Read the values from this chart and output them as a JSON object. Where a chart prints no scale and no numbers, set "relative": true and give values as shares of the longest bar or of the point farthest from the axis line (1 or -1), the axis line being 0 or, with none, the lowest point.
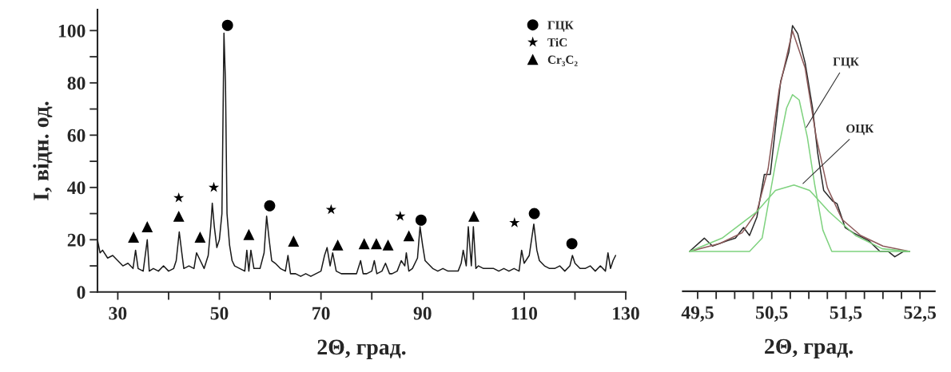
{
  "chart_data": [
    {
      "type": "line",
      "xlabel": "2Θ, град.",
      "ylabel": "I, відн. од.",
      "xlim": [
        26,
        130
      ],
      "ylim": [
        0,
        108
      ],
      "xticks": [
        30,
        {
          "value": 40,
          "label": null
        },
        50,
        {
          "value": 60,
          "label": null
        },
        70,
        {
          "value": 80,
          "label": null
        },
        90,
        {
          "value": 100,
          "label": null
        },
        110,
        {
          "value": 120,
          "label": null
        },
        130
      ],
      "yticks": [
        0,
        {
          "value": 10,
          "label": null
        },
        20,
        {
          "value": 30,
          "label": null
        },
        40,
        {
          "value": 50,
          "label": null
        },
        60,
        {
          "value": 70,
          "label": null
        },
        80,
        {
          "value": 90,
          "label": null
        },
        100
      ],
      "grid": false,
      "legend": "top right",
      "series": [
        {
          "color": "#1a1a1a",
          "x": [
            26,
            26.5,
            27,
            28,
            29,
            30,
            31,
            32,
            33,
            33.5,
            34,
            35,
            35.8,
            36.2,
            37,
            38,
            39,
            40,
            41,
            41.5,
            42.1,
            42.6,
            43,
            44,
            45,
            45.5,
            46,
            47,
            47.8,
            48.3,
            48.6,
            49,
            49.5,
            50,
            50.5,
            50.9,
            51.2,
            51.5,
            52,
            52.5,
            53,
            54,
            55,
            55.4,
            55.8,
            56.2,
            56.8,
            58,
            58.8,
            59.3,
            59.8,
            60.3,
            61,
            62,
            63,
            63.5,
            64,
            65,
            66,
            67,
            68,
            69,
            70,
            70.7,
            71.2,
            71.8,
            72.3,
            73,
            74,
            75,
            76,
            77,
            77.8,
            78.3,
            79,
            80,
            80.5,
            81,
            82,
            82.7,
            83.5,
            84,
            85,
            85.8,
            86.5,
            86.8,
            87.3,
            88,
            89,
            89.5,
            90,
            90.5,
            91,
            92,
            93,
            94,
            95,
            96,
            97,
            97.6,
            98,
            98.6,
            99,
            99.6,
            100,
            100.5,
            101,
            102,
            103,
            104,
            105,
            106,
            107,
            108,
            109,
            109.5,
            110,
            111,
            111.9,
            112.5,
            113,
            114,
            115,
            116,
            117,
            118,
            119,
            119.5,
            120,
            121,
            122,
            123,
            124,
            125,
            126,
            126.5,
            127,
            127.5,
            128
          ],
          "values": [
            20,
            15,
            16,
            13,
            14,
            12,
            10,
            11,
            9,
            16,
            9,
            8,
            20,
            8,
            9,
            8,
            10,
            8,
            9,
            12,
            23,
            15,
            9,
            10,
            9,
            15,
            13,
            9,
            14,
            25,
            34,
            25,
            17,
            20,
            30,
            99,
            80,
            30,
            18,
            12,
            10,
            9,
            8,
            16,
            8,
            16,
            9,
            9,
            15,
            29,
            20,
            12,
            11,
            9,
            8,
            14,
            7,
            7,
            6,
            7,
            6,
            7,
            8,
            14,
            17,
            10,
            15,
            8,
            7,
            7,
            7,
            7,
            12,
            7,
            7,
            8,
            12,
            7,
            8,
            11,
            7,
            7,
            8,
            12,
            10,
            15,
            8,
            9,
            13,
            25,
            18,
            12,
            11,
            9,
            8,
            9,
            8,
            8,
            8,
            11,
            16,
            10,
            25,
            10,
            25,
            9,
            10,
            9,
            9,
            9,
            8,
            9,
            8,
            9,
            8,
            16,
            11,
            14,
            26,
            16,
            12,
            10,
            9,
            9,
            10,
            8,
            10,
            14,
            11,
            9,
            9,
            10,
            8,
            10,
            8,
            15,
            9,
            12,
            14
          ]
        },
        {
          "type": "scatter",
          "name": "ГЦК",
          "color": "#000000",
          "marker": "circle",
          "x": [
            51.6,
            59.9,
            89.7,
            112.0,
            119.4
          ],
          "values": [
            102,
            33,
            27.5,
            30,
            18.5
          ]
        },
        {
          "type": "scatter",
          "name": "TiC",
          "color": "#000000",
          "marker": "star",
          "x": [
            42.0,
            48.9,
            72.0,
            85.6,
            108.1
          ],
          "values": [
            36,
            40,
            31.5,
            29,
            26.5
          ]
        },
        {
          "type": "scatter",
          "name": "Cr₃C₂",
          "color": "#000000",
          "marker": "triangle",
          "x": [
            33.1,
            35.8,
            42.0,
            46.2,
            55.8,
            64.6,
            73.3,
            78.5,
            80.9,
            83.2,
            87.3,
            100.1
          ],
          "values": [
            21,
            25,
            29,
            21,
            22,
            19.5,
            18,
            18.5,
            18.5,
            18,
            21.5,
            29
          ]
        }
      ]
    },
    {
      "type": "line",
      "relative": true,
      "xlabel": "2Θ, град.",
      "xlim": [
        49.3,
        52.7
      ],
      "tick_labels": "x",
      "grid": false,
      "xticks": [
        {
          "value": 49.5,
          "label": "49,5"
        },
        {
          "value": 49.75,
          "label": null
        },
        {
          "value": 50.0,
          "label": null
        },
        {
          "value": 50.25,
          "label": null
        },
        {
          "value": 50.5,
          "label": "50,5"
        },
        {
          "value": 50.75,
          "label": null
        },
        {
          "value": 51.0,
          "label": null
        },
        {
          "value": 51.25,
          "label": null
        },
        {
          "value": 51.5,
          "label": "51,5"
        },
        {
          "value": 51.75,
          "label": null
        },
        {
          "value": 52.0,
          "label": null
        },
        {
          "value": 52.25,
          "label": null
        },
        {
          "value": 52.5,
          "label": "52,5"
        }
      ],
      "annotations": [
        {
          "text": "ГЦК",
          "x": 50.95,
          "y": 0.61
        },
        {
          "text": "ОЦК",
          "x": 50.9,
          "y": 0.4
        }
      ],
      "series": [
        {
          "color": "#2a2a2a",
          "x": [
            49.39,
            49.59,
            49.7,
            49.9,
            50.01,
            50.12,
            50.2,
            50.3,
            50.4,
            50.48,
            50.62,
            50.73,
            50.78,
            50.85,
            50.95,
            51.05,
            51.12,
            51.2,
            51.32,
            51.38,
            51.49,
            51.6,
            51.81,
            51.96,
            52.07,
            52.16,
            52.28,
            52.36
          ],
          "values": [
            0.15,
            0.2,
            0.17,
            0.19,
            0.2,
            0.24,
            0.21,
            0.28,
            0.44,
            0.44,
            0.79,
            0.9,
            1.0,
            0.97,
            0.86,
            0.69,
            0.52,
            0.38,
            0.34,
            0.33,
            0.24,
            0.22,
            0.19,
            0.15,
            0.15,
            0.13,
            0.15,
            0.15
          ]
        },
        {
          "color": "#8c5a5a",
          "x": [
            49.39,
            49.8,
            50.1,
            50.3,
            50.45,
            50.6,
            50.78,
            50.95,
            51.1,
            51.25,
            51.45,
            51.7,
            52.0,
            52.36
          ],
          "values": [
            0.15,
            0.18,
            0.22,
            0.3,
            0.46,
            0.76,
            0.98,
            0.84,
            0.58,
            0.39,
            0.27,
            0.21,
            0.17,
            0.15
          ]
        },
        {
          "color": "#7fd27f",
          "x": [
            49.39,
            50.2,
            50.37,
            50.55,
            50.7,
            50.78,
            50.87,
            50.98,
            51.08,
            51.19,
            51.31,
            51.45,
            52.36
          ],
          "values": [
            0.15,
            0.15,
            0.2,
            0.48,
            0.69,
            0.74,
            0.72,
            0.58,
            0.4,
            0.23,
            0.15,
            0.15,
            0.15
          ]
        },
        {
          "color": "#7fd27f",
          "x": [
            49.39,
            49.83,
            50.3,
            50.55,
            50.8,
            51.01,
            51.27,
            51.63,
            51.99,
            52.36
          ],
          "values": [
            0.15,
            0.2,
            0.3,
            0.38,
            0.4,
            0.38,
            0.3,
            0.21,
            0.16,
            0.15
          ]
        }
      ]
    }
  ]
}
